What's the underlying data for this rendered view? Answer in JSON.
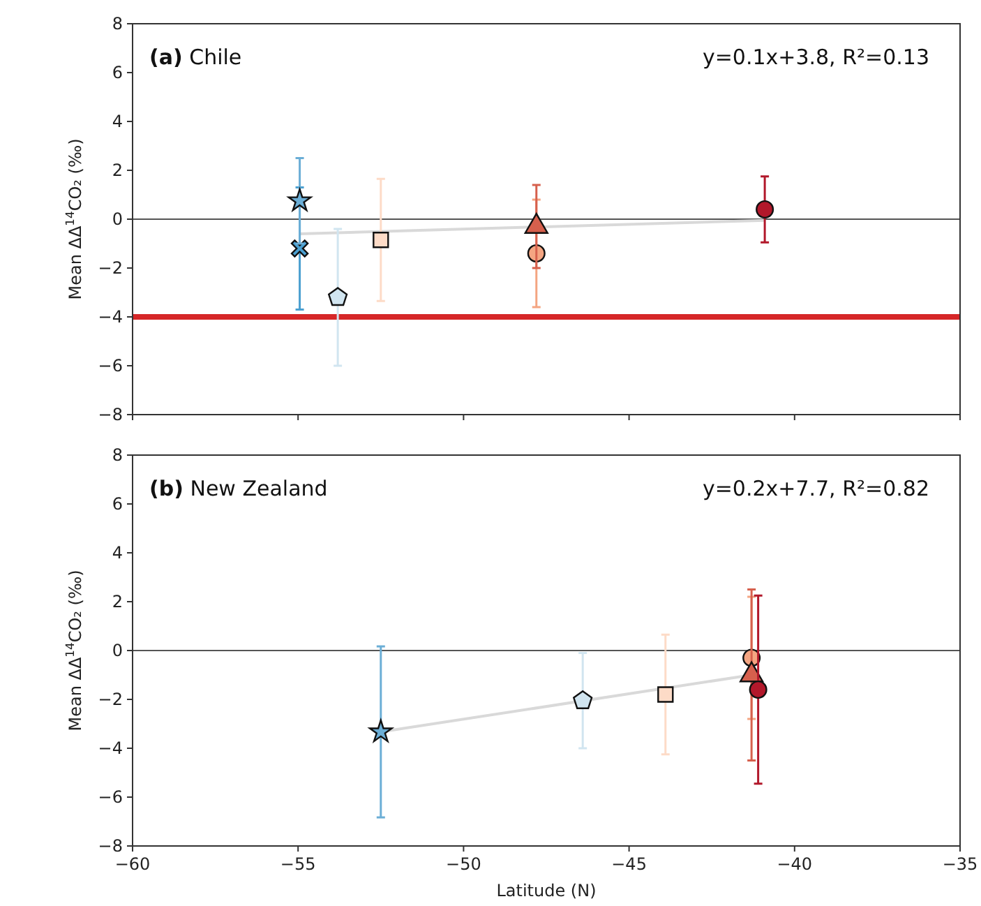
{
  "chart_data": [
    {
      "type": "scatter",
      "title": "(a) Chile",
      "ylabel": "Mean ΔΔ$^{14}$CO₂ (‰)",
      "annotations": [
        "y=0.1x+3.8, R²=0.13"
      ],
      "xlim": [
        -60,
        -35
      ],
      "xticks": [
        -60,
        -55,
        -50,
        -45,
        -40,
        -35
      ],
      "ylim": [
        -8,
        8
      ],
      "yticks": [
        -8,
        -6,
        -4,
        -2,
        0,
        2,
        4,
        6,
        8
      ],
      "tick_labels": "y",
      "grid": false,
      "ref_lines": [
        {
          "axis": "y",
          "value": 0,
          "color": "#555555"
        },
        {
          "axis": "y",
          "value": -4,
          "color": "#d62728"
        }
      ],
      "series": [
        {
          "type": "line",
          "color": "#d9d9d9",
          "marker": "none",
          "x": [
            -54.95,
            -40.9
          ],
          "values": [
            -0.6,
            -0.05
          ]
        },
        {
          "color": "#4a9fd0",
          "marker": "cross",
          "x": [
            -54.95
          ],
          "values": [
            -1.2
          ],
          "errors": [
            2.5
          ]
        },
        {
          "color": "#6baed6",
          "marker": "star",
          "x": [
            -54.95
          ],
          "values": [
            0.75
          ],
          "errors": [
            1.75
          ]
        },
        {
          "color": "#d1e5f0",
          "x": [
            -53.8
          ],
          "values": [
            -3.2
          ],
          "errors": [
            2.8
          ]
        },
        {
          "color": "#fddbc7",
          "marker": "square",
          "x": [
            -52.5
          ],
          "values": [
            -0.85
          ],
          "errors": [
            2.5
          ]
        },
        {
          "color": "#f4a582",
          "marker": "circle",
          "x": [
            -47.8
          ],
          "values": [
            -1.4
          ],
          "errors": [
            2.2
          ]
        },
        {
          "color": "#d6604d",
          "marker": "triangle",
          "x": [
            -47.8
          ],
          "values": [
            -0.3
          ],
          "errors": [
            1.7
          ]
        },
        {
          "color": "#b2182b",
          "marker": "circle",
          "x": [
            -40.9
          ],
          "values": [
            0.4
          ],
          "errors": [
            1.35
          ]
        }
      ]
    },
    {
      "type": "scatter",
      "title": "(b) New Zealand",
      "xlabel": "Latitude (N)",
      "ylabel": "Mean ΔΔ$^{14}$CO₂ (‰)",
      "annotations": [
        "y=0.2x+7.7, R²=0.82"
      ],
      "xlim": [
        -60,
        -35
      ],
      "xticks": [
        -60,
        -55,
        -50,
        -45,
        -40,
        -35
      ],
      "ylim": [
        -8,
        8
      ],
      "yticks": [
        -8,
        -6,
        -4,
        -2,
        0,
        2,
        4,
        6,
        8
      ],
      "grid": false,
      "ref_lines": [
        {
          "axis": "y",
          "value": 0,
          "color": "#555555"
        }
      ],
      "series": [
        {
          "type": "line",
          "color": "#d9d9d9",
          "marker": "none",
          "x": [
            -52.5,
            -41.3
          ],
          "values": [
            -3.33,
            -1.0
          ]
        },
        {
          "color": "#6baed6",
          "marker": "star",
          "x": [
            -52.5
          ],
          "values": [
            -3.33
          ],
          "errors": [
            3.5
          ]
        },
        {
          "color": "#d1e5f0",
          "x": [
            -46.4
          ],
          "values": [
            -2.05
          ],
          "errors": [
            1.95
          ]
        },
        {
          "color": "#fddbc7",
          "marker": "square",
          "x": [
            -43.9
          ],
          "values": [
            -1.8
          ],
          "errors": [
            2.45
          ]
        },
        {
          "color": "#f4a582",
          "marker": "circle",
          "x": [
            -41.3
          ],
          "values": [
            -0.3
          ],
          "errors": [
            2.5
          ]
        },
        {
          "color": "#d6604d",
          "marker": "triangle",
          "x": [
            -41.3
          ],
          "values": [
            -1.0
          ],
          "errors": [
            3.5
          ]
        },
        {
          "color": "#b2182b",
          "marker": "circle",
          "x": [
            -41.1
          ],
          "values": [
            -1.6
          ],
          "errors": [
            3.85
          ]
        }
      ]
    }
  ]
}
